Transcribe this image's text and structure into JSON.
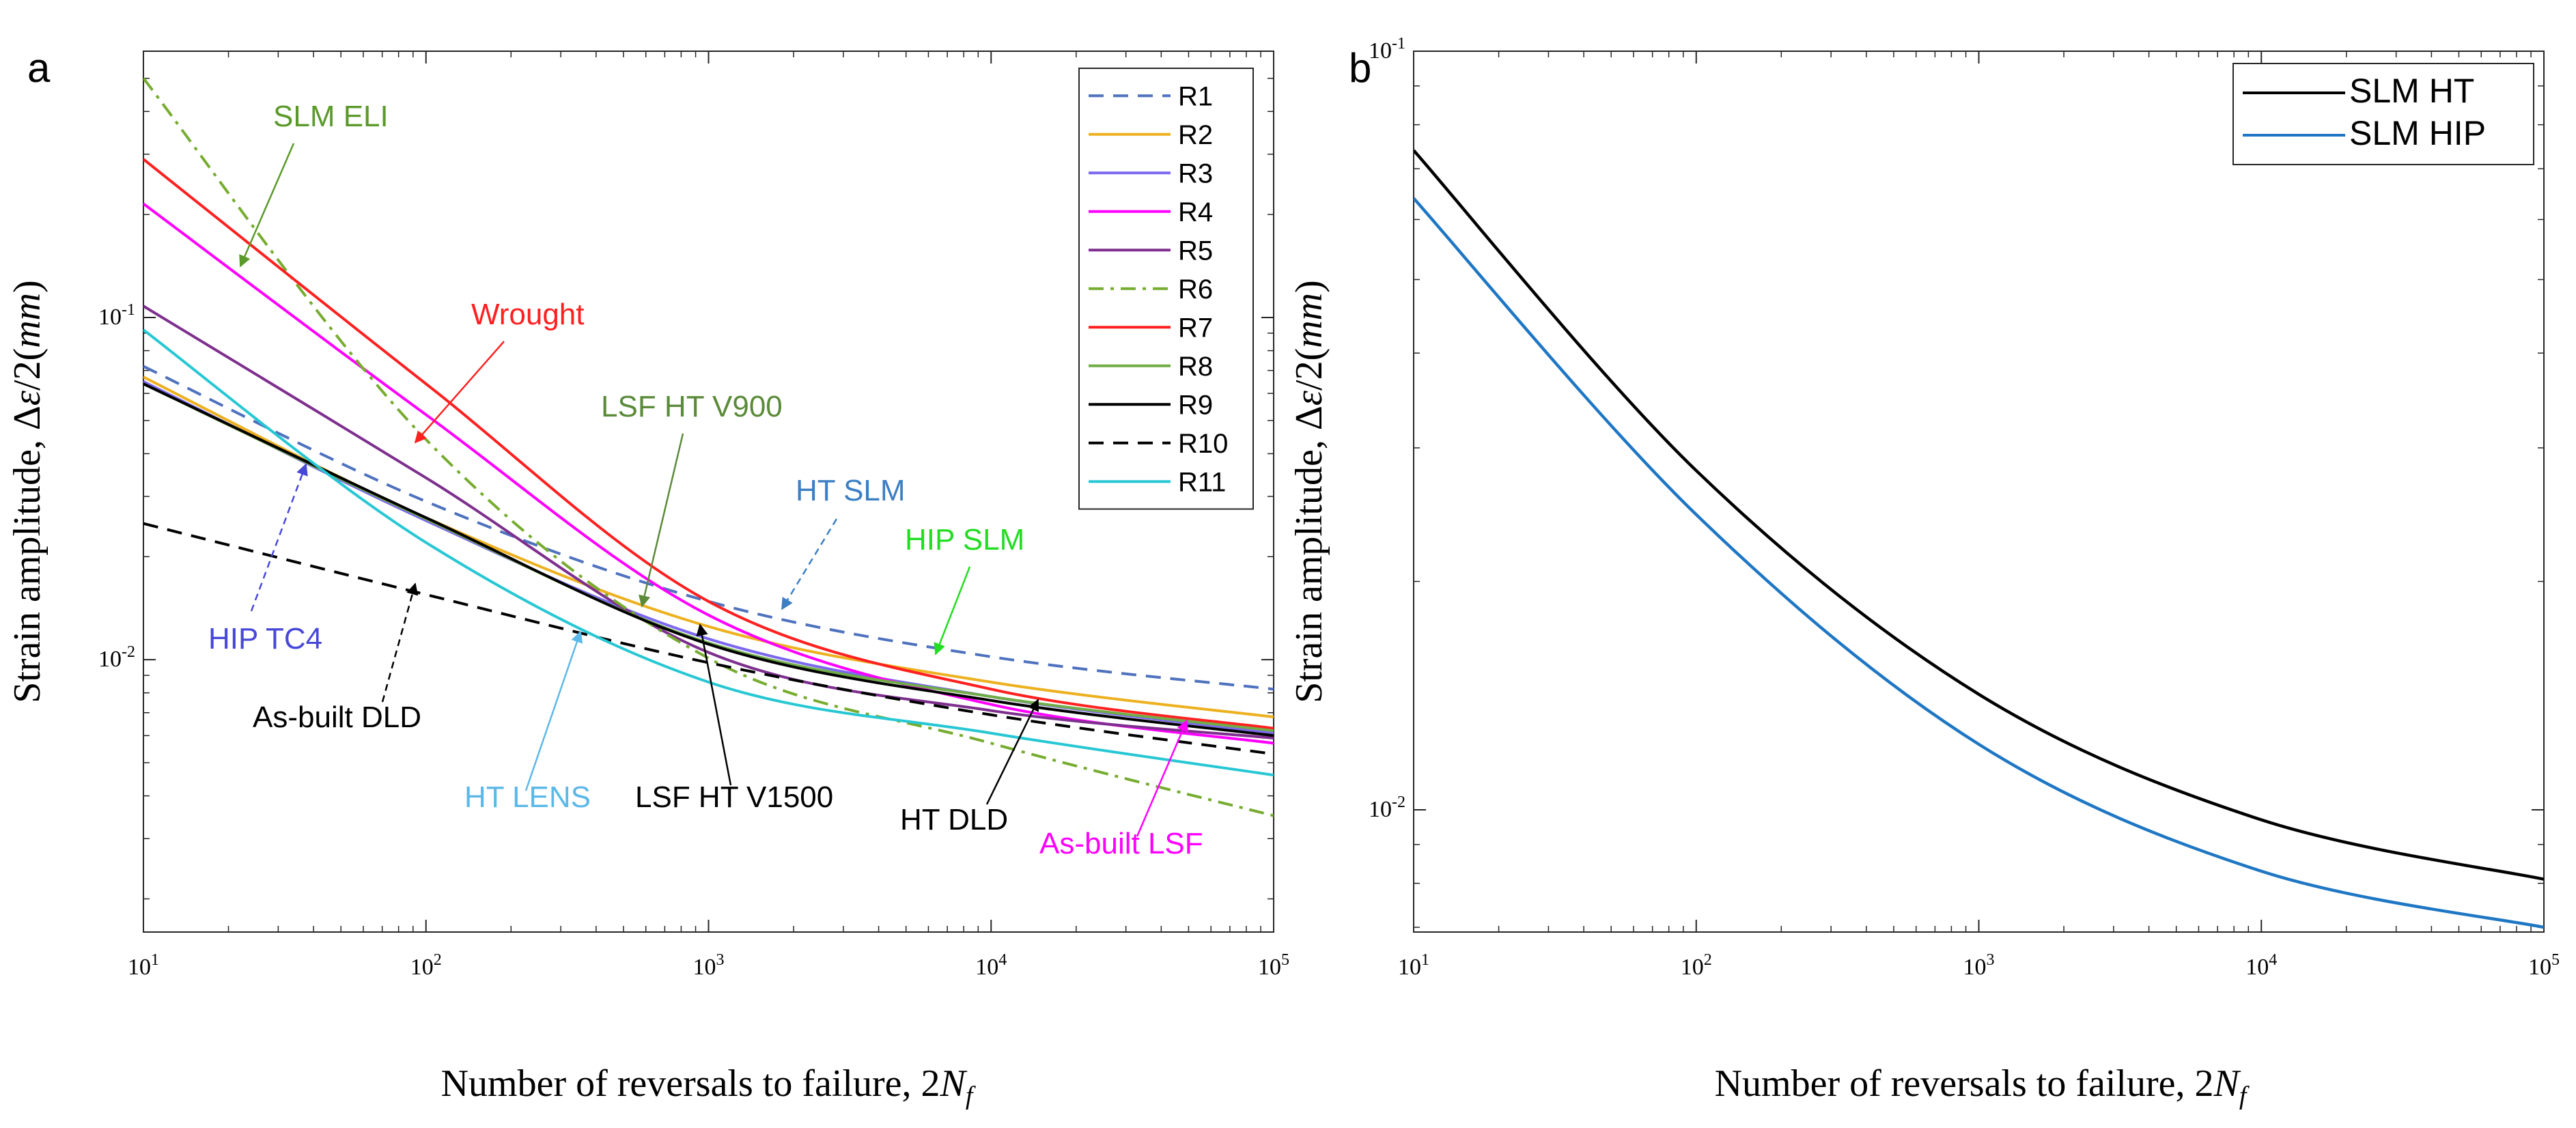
{
  "chart_data": [
    {
      "panel": "a",
      "type": "line",
      "xscale": "log",
      "yscale": "log",
      "xlim": [
        10,
        100000
      ],
      "ylim": [
        0.0016,
        0.6
      ],
      "xlabel": "Number of reversals to failure, 2N_f",
      "xlabel_main": "Number of reversals to failure, 2",
      "xlabel_var": "N",
      "xlabel_sub": "f",
      "ylabel": "Strain amplitude, Δε/2(mm)",
      "ylabel_main": "Strain amplitude, Δ",
      "ylabel_eps": "ε",
      "ylabel_tail": "/2(",
      "ylabel_unit": "mm",
      "ylabel_close": ")",
      "x_ticks": [
        {
          "value": 10,
          "base": "10",
          "exp": "1"
        },
        {
          "value": 100,
          "base": "10",
          "exp": "2"
        },
        {
          "value": 1000,
          "base": "10",
          "exp": "3"
        },
        {
          "value": 10000,
          "base": "10",
          "exp": "4"
        },
        {
          "value": 100000,
          "base": "10",
          "exp": "5"
        }
      ],
      "y_ticks": [
        {
          "value": 0.01,
          "base": "10",
          "exp": "-2"
        },
        {
          "value": 0.1,
          "base": "10",
          "exp": "-1"
        }
      ],
      "legend_position": "top-right",
      "series": [
        {
          "name": "R1",
          "color": "#4f72be",
          "dash": "dashed",
          "x": [
            10,
            100,
            1000,
            10000,
            100000
          ],
          "y": [
            0.072,
            0.029,
            0.0148,
            0.0102,
            0.0082
          ]
        },
        {
          "name": "R2",
          "color": "#edb120",
          "dash": "solid",
          "x": [
            10,
            100,
            1000,
            10000,
            100000
          ],
          "y": [
            0.067,
            0.026,
            0.0125,
            0.0086,
            0.0068
          ]
        },
        {
          "name": "R3",
          "color": "#7b68ee",
          "dash": "solid",
          "x": [
            10,
            100,
            1000,
            10000,
            100000
          ],
          "y": [
            0.065,
            0.0255,
            0.0115,
            0.0078,
            0.0061
          ]
        },
        {
          "name": "R4",
          "color": "#ff00ff",
          "dash": "solid",
          "x": [
            10,
            100,
            1000,
            10000,
            100000
          ],
          "y": [
            0.215,
            0.052,
            0.0135,
            0.0074,
            0.0057
          ]
        },
        {
          "name": "R5",
          "color": "#7e2f8e",
          "dash": "solid",
          "x": [
            10,
            100,
            1000,
            10000,
            100000
          ],
          "y": [
            0.108,
            0.034,
            0.0105,
            0.0071,
            0.0059
          ]
        },
        {
          "name": "R6",
          "color": "#77ac30",
          "dash": "dashdot",
          "x": [
            10,
            100,
            1000,
            10000,
            100000
          ],
          "y": [
            0.5,
            0.044,
            0.0101,
            0.0057,
            0.0035
          ]
        },
        {
          "name": "R7",
          "color": "#ff2020",
          "dash": "solid",
          "x": [
            10,
            100,
            1000,
            10000,
            100000
          ],
          "y": [
            0.29,
            0.064,
            0.0148,
            0.0082,
            0.0063
          ]
        },
        {
          "name": "R8",
          "color": "#70ad47",
          "dash": "solid",
          "x": [
            10,
            100,
            1000,
            10000,
            100000
          ],
          "y": [
            0.064,
            0.0258,
            0.0112,
            0.0078,
            0.0062
          ]
        },
        {
          "name": "R9",
          "color": "#000000",
          "dash": "solid",
          "x": [
            10,
            100,
            1000,
            10000,
            100000
          ],
          "y": [
            0.064,
            0.026,
            0.0111,
            0.0076,
            0.006
          ]
        },
        {
          "name": "R10",
          "color": "#000000",
          "dash": "dashed",
          "x": [
            10,
            100,
            1000,
            10000,
            100000
          ],
          "y": [
            0.025,
            0.0155,
            0.0098,
            0.0069,
            0.0053
          ]
        },
        {
          "name": "R11",
          "color": "#27c7d4",
          "dash": "solid",
          "x": [
            10,
            100,
            1000,
            10000,
            100000
          ],
          "y": [
            0.092,
            0.022,
            0.0086,
            0.0061,
            0.0046
          ]
        }
      ],
      "annotations": [
        {
          "text": "SLM ELI",
          "color": "#5b9a2a"
        },
        {
          "text": "Wrought",
          "color": "#ff2020"
        },
        {
          "text": "LSF HT V900",
          "color": "#5b8a3a"
        },
        {
          "text": "HT SLM",
          "color": "#3b7fc4"
        },
        {
          "text": "HIP SLM",
          "color": "#22dd22"
        },
        {
          "text": "HIP TC4",
          "color": "#4848d8"
        },
        {
          "text": "As-built DLD",
          "color": "#000000"
        },
        {
          "text": "HT LENS",
          "color": "#5bb8e8"
        },
        {
          "text": "LSF HT V1500",
          "color": "#000000"
        },
        {
          "text": "HT DLD",
          "color": "#000000"
        },
        {
          "text": "As-built LSF",
          "color": "#ff00ff"
        }
      ]
    },
    {
      "panel": "b",
      "type": "line",
      "xscale": "log",
      "yscale": "log",
      "xlim": [
        10,
        100000
      ],
      "ylim": [
        0.0069,
        0.1
      ],
      "xlabel": "Number of reversals to failure, 2N_f",
      "xlabel_main": "Number of reversals to failure, 2",
      "xlabel_var": "N",
      "xlabel_sub": "f",
      "ylabel": "Strain amplitude, Δε/2(mm)",
      "ylabel_main": "Strain amplitude, Δ",
      "ylabel_eps": "ε",
      "ylabel_tail": "/2(",
      "ylabel_unit": "mm",
      "ylabel_close": ")",
      "x_ticks": [
        {
          "value": 10,
          "base": "10",
          "exp": "1"
        },
        {
          "value": 100,
          "base": "10",
          "exp": "2"
        },
        {
          "value": 1000,
          "base": "10",
          "exp": "3"
        },
        {
          "value": 10000,
          "base": "10",
          "exp": "4"
        },
        {
          "value": 100000,
          "base": "10",
          "exp": "5"
        }
      ],
      "y_ticks": [
        {
          "value": 0.01,
          "base": "10",
          "exp": "-2"
        },
        {
          "value": 0.1,
          "base": "10",
          "exp": "-1"
        }
      ],
      "legend_position": "top-right",
      "series": [
        {
          "name": "SLM HT",
          "color": "#000000",
          "dash": "solid",
          "x": [
            10,
            100,
            1000,
            10000,
            100000
          ],
          "y": [
            0.074,
            0.028,
            0.0142,
            0.0097,
            0.0081
          ]
        },
        {
          "name": "SLM HIP",
          "color": "#1f77c4",
          "dash": "solid",
          "x": [
            10,
            100,
            1000,
            10000,
            100000
          ],
          "y": [
            0.064,
            0.0245,
            0.0122,
            0.0083,
            0.007
          ]
        }
      ]
    }
  ]
}
